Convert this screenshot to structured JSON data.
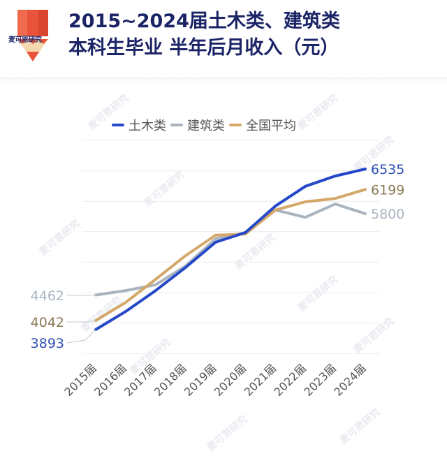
{
  "logo": {
    "brand_text": "麦可思研究",
    "colors": {
      "pencil_red": "#e8533a",
      "pencil_tip": "#f4d9b0"
    }
  },
  "header": {
    "title_line1": "2015~2024届土木类、建筑类",
    "title_line2": "本科生毕业 半年后月收入（元）",
    "title_color": "#1a2466"
  },
  "legend": {
    "items": [
      {
        "label": "土木类",
        "color": "#2448c8"
      },
      {
        "label": "建筑类",
        "color": "#a9b4bf"
      },
      {
        "label": "全国平均",
        "color": "#d4a86a"
      }
    ]
  },
  "watermark": "麦可思研究",
  "chart_data": {
    "type": "line",
    "title": "2015~2024届土木类、建筑类本科生毕业半年后月收入（元）",
    "xlabel": "",
    "ylabel": "",
    "categories": [
      "2015届",
      "2016届",
      "2017届",
      "2018届",
      "2019届",
      "2020届",
      "2021届",
      "2022届",
      "2023届",
      "2024届"
    ],
    "series": [
      {
        "name": "土木类",
        "color": "#2448c8",
        "values": [
          3893,
          4190,
          4535,
          4915,
          5330,
          5490,
          5925,
          6250,
          6420,
          6535
        ],
        "start_label": "3893",
        "end_label": "6535"
      },
      {
        "name": "建筑类",
        "color": "#a9b4bf",
        "values": [
          4462,
          4535,
          4630,
          4940,
          5385,
          5490,
          5860,
          5740,
          5960,
          5800
        ],
        "start_label": "4462",
        "end_label": "5800"
      },
      {
        "name": "全国平均",
        "color": "#d4a86a",
        "values": [
          4042,
          4340,
          4720,
          5110,
          5445,
          5465,
          5860,
          5995,
          6050,
          6199
        ],
        "start_label": "4042",
        "end_label": "6199"
      }
    ],
    "ylim": [
      3500,
      6800
    ],
    "grid": true,
    "gridline_count": 8,
    "legend_position": "top",
    "x_tick_rotation": -45,
    "y_axis_visible": false
  }
}
